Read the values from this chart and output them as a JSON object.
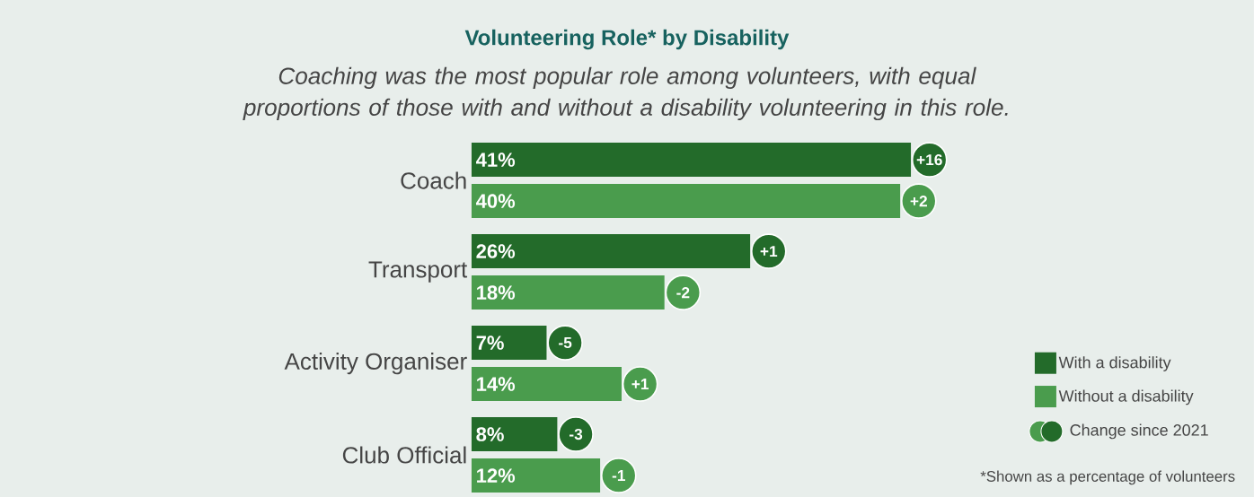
{
  "chart_data": {
    "type": "bar",
    "orientation": "horizontal",
    "title": "Volunteering Role* by Disability",
    "subtitle": "Coaching was the most popular role among volunteers, with equal proportions of those with and without a disability volunteering in this role.",
    "categories": [
      "Coach",
      "Transport",
      "Activity Organiser",
      "Club Official"
    ],
    "series": [
      {
        "name": "With a disability",
        "color": "#236b2a",
        "values": [
          41,
          26,
          7,
          8
        ],
        "value_labels": [
          "41%",
          "26%",
          "7%",
          "8%"
        ]
      },
      {
        "name": "Without a disability",
        "color": "#4a9c4d",
        "values": [
          40,
          18,
          14,
          12
        ],
        "value_labels": [
          "40%",
          "18%",
          "14%",
          "12%"
        ]
      }
    ],
    "tick_labels": "y",
    "legend": "right",
    "annotations": [
      {
        "text": "+16",
        "x": 41,
        "y": "Coach"
      },
      {
        "text": "+2",
        "x": 40,
        "y": "Coach"
      },
      {
        "text": "+1",
        "x": 26,
        "y": "Transport"
      },
      {
        "text": "-2",
        "x": 18,
        "y": "Transport"
      },
      {
        "text": "-5",
        "x": 7,
        "y": "Activity Organiser"
      },
      {
        "text": "+1",
        "x": 14,
        "y": "Activity Organiser"
      },
      {
        "text": "-3",
        "x": 8,
        "y": "Club Official"
      },
      {
        "text": "-1",
        "x": 12,
        "y": "Club Official"
      },
      "Change since 2021",
      "*Shown as a percentage of volunteers"
    ]
  }
}
